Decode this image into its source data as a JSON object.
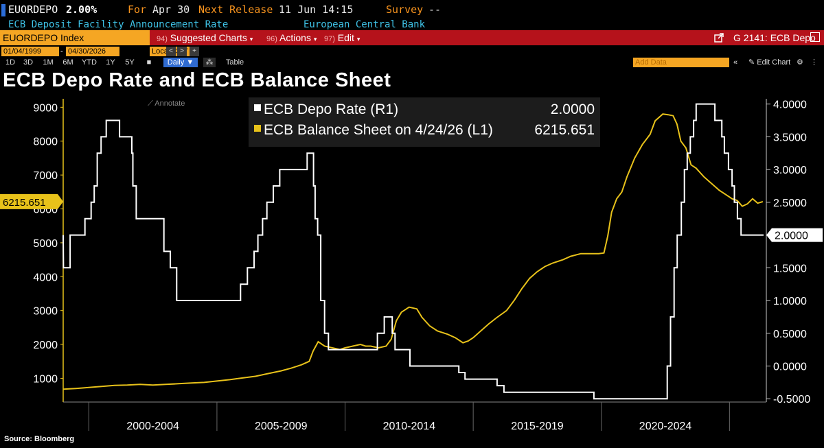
{
  "header": {
    "ticker": "EUORDEPO",
    "value": "2.00%",
    "for_label": "For",
    "for_date": "Apr 30",
    "next_label": "Next Release",
    "next_date": "11 Jun 14:15",
    "survey_label": "Survey",
    "survey_value": "--",
    "description": "ECB Deposit Facility Announcement Rate",
    "source_org": "European Central Bank"
  },
  "menubar": {
    "security": "EUORDEPO Index",
    "suggested_num": "94)",
    "suggested": "Suggested Charts",
    "actions_num": "96)",
    "actions": "Actions",
    "edit_num": "97)",
    "edit": "Edit",
    "right_label": "G 2141: ECB Depo"
  },
  "controls": {
    "start_date": "01/04/1999",
    "end_date": "04/30/2026",
    "currency": "Local CCY",
    "periods": [
      "1D",
      "3D",
      "1M",
      "6M",
      "YTD",
      "1Y",
      "5Y"
    ],
    "frequency": "Daily",
    "table_label": "Table",
    "add_data_placeholder": "Add Data",
    "edit_chart": "Edit Chart"
  },
  "title": "ECB Depo Rate and ECB Balance Sheet",
  "source": "Source: Bloomberg",
  "chart_data": {
    "type": "line",
    "title": "ECB Depo Rate and ECB Balance Sheet",
    "annotate_label": "Annotate",
    "x_tick_labels": [
      "2000-2004",
      "2005-2009",
      "2010-2014",
      "2015-2019",
      "2020-2024"
    ],
    "xlim": [
      1999.0,
      2026.33
    ],
    "left_axis": {
      "ticks": [
        1000,
        2000,
        3000,
        4000,
        5000,
        6000,
        7000,
        8000,
        9000
      ],
      "tick_labels": [
        "1000",
        "2000",
        "3000",
        "4000",
        "5000",
        "6000",
        "7000",
        "8000",
        "9000"
      ],
      "ylim": [
        300,
        9250
      ]
    },
    "right_axis": {
      "ticks": [
        -0.5,
        0,
        0.5,
        1,
        1.5,
        2,
        2.5,
        3,
        3.5,
        4
      ],
      "tick_labels": [
        "-0.5000",
        "0.0000",
        "0.5000",
        "1.0000",
        "1.5000",
        "2.0000",
        "2.5000",
        "3.0000",
        "3.5000",
        "4.0000"
      ],
      "ylim": [
        -0.55,
        4.08
      ]
    },
    "colors": {
      "depo": "#ffffff",
      "balance": "#e8c21a",
      "axis_left": "#e8c21a",
      "axis_right": "#ffffff",
      "grid": "#3a3a3a"
    },
    "legend_position": "top-center",
    "series": [
      {
        "name": "ECB Depo Rate (R1)",
        "last_value": "2.0000",
        "axis": "right",
        "step": true,
        "points": [
          [
            1999.0,
            2.0
          ],
          [
            1999.01,
            1.5
          ],
          [
            1999.27,
            1.5
          ],
          [
            1999.27,
            2.0
          ],
          [
            1999.85,
            2.0
          ],
          [
            1999.85,
            2.25
          ],
          [
            2000.09,
            2.25
          ],
          [
            2000.09,
            2.5
          ],
          [
            2000.21,
            2.5
          ],
          [
            2000.21,
            2.75
          ],
          [
            2000.33,
            2.75
          ],
          [
            2000.33,
            3.25
          ],
          [
            2000.48,
            3.25
          ],
          [
            2000.48,
            3.5
          ],
          [
            2000.68,
            3.5
          ],
          [
            2000.68,
            3.75
          ],
          [
            2001.2,
            3.75
          ],
          [
            2001.2,
            3.5
          ],
          [
            2001.68,
            3.5
          ],
          [
            2001.68,
            3.25
          ],
          [
            2001.72,
            3.25
          ],
          [
            2001.72,
            2.75
          ],
          [
            2001.85,
            2.75
          ],
          [
            2001.85,
            2.25
          ],
          [
            2002.93,
            2.25
          ],
          [
            2002.93,
            1.75
          ],
          [
            2003.18,
            1.75
          ],
          [
            2003.18,
            1.5
          ],
          [
            2003.43,
            1.5
          ],
          [
            2003.43,
            1.0
          ],
          [
            2005.92,
            1.0
          ],
          [
            2005.92,
            1.25
          ],
          [
            2006.19,
            1.25
          ],
          [
            2006.19,
            1.5
          ],
          [
            2006.45,
            1.5
          ],
          [
            2006.45,
            1.75
          ],
          [
            2006.6,
            1.75
          ],
          [
            2006.6,
            2.0
          ],
          [
            2006.78,
            2.0
          ],
          [
            2006.78,
            2.25
          ],
          [
            2006.95,
            2.25
          ],
          [
            2006.95,
            2.5
          ],
          [
            2007.2,
            2.5
          ],
          [
            2007.2,
            2.75
          ],
          [
            2007.45,
            2.75
          ],
          [
            2007.45,
            3.0
          ],
          [
            2008.52,
            3.0
          ],
          [
            2008.52,
            3.25
          ],
          [
            2008.77,
            3.25
          ],
          [
            2008.77,
            2.75
          ],
          [
            2008.83,
            2.75
          ],
          [
            2008.83,
            2.25
          ],
          [
            2008.93,
            2.25
          ],
          [
            2008.93,
            2.0
          ],
          [
            2009.05,
            2.0
          ],
          [
            2009.05,
            1.0
          ],
          [
            2009.2,
            1.0
          ],
          [
            2009.2,
            0.5
          ],
          [
            2009.35,
            0.5
          ],
          [
            2009.35,
            0.25
          ],
          [
            2011.26,
            0.25
          ],
          [
            2011.26,
            0.5
          ],
          [
            2011.53,
            0.5
          ],
          [
            2011.53,
            0.75
          ],
          [
            2011.84,
            0.75
          ],
          [
            2011.84,
            0.5
          ],
          [
            2011.95,
            0.5
          ],
          [
            2011.95,
            0.25
          ],
          [
            2012.53,
            0.25
          ],
          [
            2012.53,
            0.0
          ],
          [
            2014.44,
            0.0
          ],
          [
            2014.44,
            -0.1
          ],
          [
            2014.68,
            -0.1
          ],
          [
            2014.68,
            -0.2
          ],
          [
            2015.93,
            -0.2
          ],
          [
            2015.93,
            -0.3
          ],
          [
            2016.2,
            -0.3
          ],
          [
            2016.2,
            -0.4
          ],
          [
            2019.71,
            -0.4
          ],
          [
            2019.71,
            -0.5
          ],
          [
            2022.57,
            -0.5
          ],
          [
            2022.57,
            0.0
          ],
          [
            2022.7,
            0.0
          ],
          [
            2022.7,
            0.75
          ],
          [
            2022.84,
            0.75
          ],
          [
            2022.84,
            1.5
          ],
          [
            2022.96,
            1.5
          ],
          [
            2022.96,
            2.0
          ],
          [
            2023.12,
            2.0
          ],
          [
            2023.12,
            2.5
          ],
          [
            2023.24,
            2.5
          ],
          [
            2023.24,
            3.0
          ],
          [
            2023.35,
            3.0
          ],
          [
            2023.35,
            3.25
          ],
          [
            2023.47,
            3.25
          ],
          [
            2023.47,
            3.5
          ],
          [
            2023.6,
            3.5
          ],
          [
            2023.6,
            3.75
          ],
          [
            2023.7,
            3.75
          ],
          [
            2023.7,
            4.0
          ],
          [
            2024.43,
            4.0
          ],
          [
            2024.43,
            3.75
          ],
          [
            2024.7,
            3.75
          ],
          [
            2024.7,
            3.5
          ],
          [
            2024.8,
            3.5
          ],
          [
            2024.8,
            3.25
          ],
          [
            2024.96,
            3.25
          ],
          [
            2024.96,
            3.0
          ],
          [
            2025.1,
            3.0
          ],
          [
            2025.1,
            2.75
          ],
          [
            2025.19,
            2.75
          ],
          [
            2025.19,
            2.5
          ],
          [
            2025.31,
            2.5
          ],
          [
            2025.31,
            2.25
          ],
          [
            2025.45,
            2.25
          ],
          [
            2025.45,
            2.0
          ],
          [
            2026.33,
            2.0
          ]
        ]
      },
      {
        "name": "ECB Balance Sheet on 4/24/26 (L1)",
        "last_value": "6215.651",
        "axis": "left",
        "callout": "6215.651",
        "points": [
          [
            1999.0,
            680
          ],
          [
            1999.5,
            700
          ],
          [
            2000.0,
            730
          ],
          [
            2000.5,
            760
          ],
          [
            2001.0,
            790
          ],
          [
            2001.5,
            800
          ],
          [
            2002.0,
            820
          ],
          [
            2002.5,
            800
          ],
          [
            2003.0,
            820
          ],
          [
            2003.5,
            840
          ],
          [
            2004.0,
            860
          ],
          [
            2004.5,
            880
          ],
          [
            2005.0,
            920
          ],
          [
            2005.5,
            960
          ],
          [
            2006.0,
            1010
          ],
          [
            2006.5,
            1060
          ],
          [
            2007.0,
            1140
          ],
          [
            2007.5,
            1220
          ],
          [
            2007.9,
            1300
          ],
          [
            2008.3,
            1400
          ],
          [
            2008.6,
            1500
          ],
          [
            2008.75,
            1800
          ],
          [
            2008.95,
            2080
          ],
          [
            2009.2,
            1950
          ],
          [
            2009.5,
            1900
          ],
          [
            2009.8,
            1850
          ],
          [
            2010.0,
            1900
          ],
          [
            2010.3,
            1950
          ],
          [
            2010.6,
            2000
          ],
          [
            2010.8,
            1950
          ],
          [
            2011.0,
            1950
          ],
          [
            2011.3,
            1900
          ],
          [
            2011.6,
            1950
          ],
          [
            2011.8,
            2150
          ],
          [
            2012.0,
            2700
          ],
          [
            2012.2,
            2950
          ],
          [
            2012.5,
            3100
          ],
          [
            2012.8,
            3050
          ],
          [
            2013.0,
            2800
          ],
          [
            2013.3,
            2550
          ],
          [
            2013.6,
            2400
          ],
          [
            2014.0,
            2300
          ],
          [
            2014.3,
            2200
          ],
          [
            2014.6,
            2050
          ],
          [
            2014.8,
            2100
          ],
          [
            2015.0,
            2200
          ],
          [
            2015.3,
            2400
          ],
          [
            2015.6,
            2600
          ],
          [
            2015.9,
            2780
          ],
          [
            2016.3,
            3000
          ],
          [
            2016.6,
            3300
          ],
          [
            2016.9,
            3650
          ],
          [
            2017.2,
            3950
          ],
          [
            2017.5,
            4150
          ],
          [
            2017.8,
            4300
          ],
          [
            2018.1,
            4400
          ],
          [
            2018.5,
            4500
          ],
          [
            2018.8,
            4600
          ],
          [
            2019.2,
            4680
          ],
          [
            2019.6,
            4680
          ],
          [
            2019.9,
            4680
          ],
          [
            2020.1,
            4700
          ],
          [
            2020.25,
            5200
          ],
          [
            2020.4,
            5900
          ],
          [
            2020.6,
            6300
          ],
          [
            2020.8,
            6500
          ],
          [
            2021.0,
            6950
          ],
          [
            2021.3,
            7500
          ],
          [
            2021.6,
            7900
          ],
          [
            2021.9,
            8200
          ],
          [
            2022.1,
            8600
          ],
          [
            2022.4,
            8800
          ],
          [
            2022.6,
            8780
          ],
          [
            2022.8,
            8750
          ],
          [
            2022.95,
            8500
          ],
          [
            2023.1,
            8000
          ],
          [
            2023.3,
            7800
          ],
          [
            2023.5,
            7300
          ],
          [
            2023.7,
            7200
          ],
          [
            2024.0,
            6950
          ],
          [
            2024.3,
            6750
          ],
          [
            2024.6,
            6550
          ],
          [
            2024.9,
            6400
          ],
          [
            2025.1,
            6300
          ],
          [
            2025.3,
            6250
          ],
          [
            2025.5,
            6080
          ],
          [
            2025.7,
            6150
          ],
          [
            2025.9,
            6300
          ],
          [
            2026.1,
            6170
          ],
          [
            2026.3,
            6215
          ]
        ]
      }
    ]
  }
}
